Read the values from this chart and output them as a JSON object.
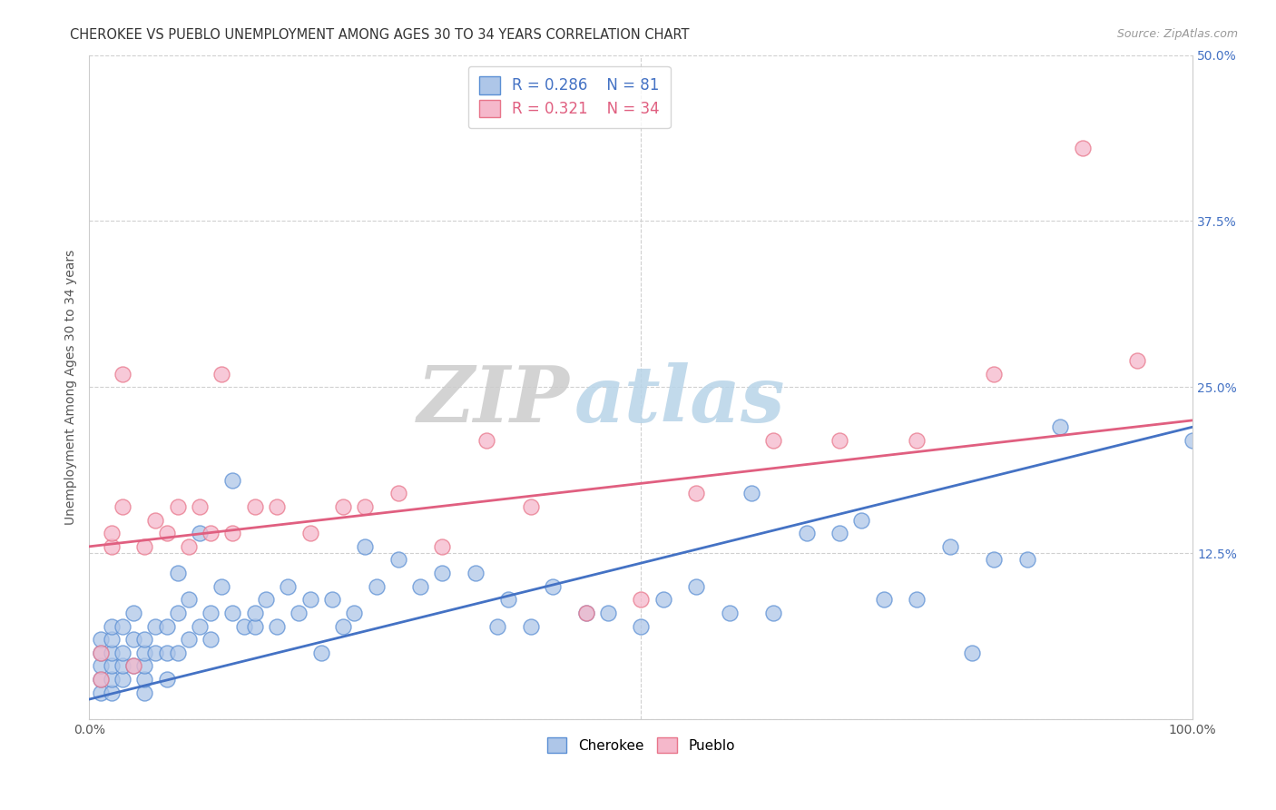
{
  "title": "CHEROKEE VS PUEBLO UNEMPLOYMENT AMONG AGES 30 TO 34 YEARS CORRELATION CHART",
  "source": "Source: ZipAtlas.com",
  "ylabel": "Unemployment Among Ages 30 to 34 years",
  "xlim": [
    0,
    100
  ],
  "ylim": [
    0,
    50
  ],
  "yticks": [
    0,
    12.5,
    25.0,
    37.5,
    50.0
  ],
  "right_yticklabels": [
    "",
    "12.5%",
    "25.0%",
    "37.5%",
    "50.0%"
  ],
  "xtick_left_label": "0.0%",
  "xtick_right_label": "100.0%",
  "grid_color": "#d0d0d0",
  "background_color": "#ffffff",
  "cherokee_color": "#aec6e8",
  "pueblo_color": "#f5b8cb",
  "cherokee_edge_color": "#5b8fd4",
  "pueblo_edge_color": "#e8758a",
  "cherokee_line_color": "#4472c4",
  "pueblo_line_color": "#e05f80",
  "cherokee_R": 0.286,
  "cherokee_N": 81,
  "pueblo_R": 0.321,
  "pueblo_N": 34,
  "watermark_zip": "ZIP",
  "watermark_atlas": "atlas",
  "cherokee_reg_x0": 0,
  "cherokee_reg_y0": 1.5,
  "cherokee_reg_x1": 100,
  "cherokee_reg_y1": 22.0,
  "pueblo_reg_x0": 0,
  "pueblo_reg_y0": 13.0,
  "pueblo_reg_x1": 100,
  "pueblo_reg_y1": 22.5,
  "cherokee_x": [
    1,
    1,
    1,
    1,
    1,
    2,
    2,
    2,
    2,
    2,
    2,
    3,
    3,
    3,
    3,
    4,
    4,
    4,
    5,
    5,
    5,
    5,
    5,
    6,
    6,
    7,
    7,
    7,
    8,
    8,
    8,
    9,
    9,
    10,
    10,
    11,
    11,
    12,
    13,
    13,
    14,
    15,
    15,
    16,
    17,
    18,
    19,
    20,
    21,
    22,
    23,
    24,
    25,
    26,
    28,
    30,
    32,
    35,
    37,
    38,
    40,
    42,
    45,
    47,
    50,
    52,
    55,
    58,
    60,
    62,
    65,
    68,
    70,
    72,
    75,
    78,
    80,
    82,
    85,
    88,
    100
  ],
  "cherokee_y": [
    2,
    3,
    4,
    5,
    6,
    2,
    3,
    4,
    5,
    6,
    7,
    3,
    4,
    5,
    7,
    4,
    6,
    8,
    2,
    3,
    4,
    5,
    6,
    5,
    7,
    3,
    5,
    7,
    5,
    8,
    11,
    6,
    9,
    7,
    14,
    6,
    8,
    10,
    8,
    18,
    7,
    7,
    8,
    9,
    7,
    10,
    8,
    9,
    5,
    9,
    7,
    8,
    13,
    10,
    12,
    10,
    11,
    11,
    7,
    9,
    7,
    10,
    8,
    8,
    7,
    9,
    10,
    8,
    17,
    8,
    14,
    14,
    15,
    9,
    9,
    13,
    5,
    12,
    12,
    22,
    21
  ],
  "pueblo_x": [
    1,
    1,
    2,
    2,
    3,
    3,
    4,
    5,
    6,
    7,
    8,
    9,
    10,
    11,
    12,
    13,
    15,
    17,
    20,
    23,
    25,
    28,
    32,
    36,
    40,
    45,
    50,
    55,
    62,
    68,
    75,
    82,
    90,
    95
  ],
  "pueblo_y": [
    5,
    3,
    13,
    14,
    16,
    26,
    4,
    13,
    15,
    14,
    16,
    13,
    16,
    14,
    26,
    14,
    16,
    16,
    14,
    16,
    16,
    17,
    13,
    21,
    16,
    8,
    9,
    17,
    21,
    21,
    21,
    26,
    43,
    27
  ]
}
